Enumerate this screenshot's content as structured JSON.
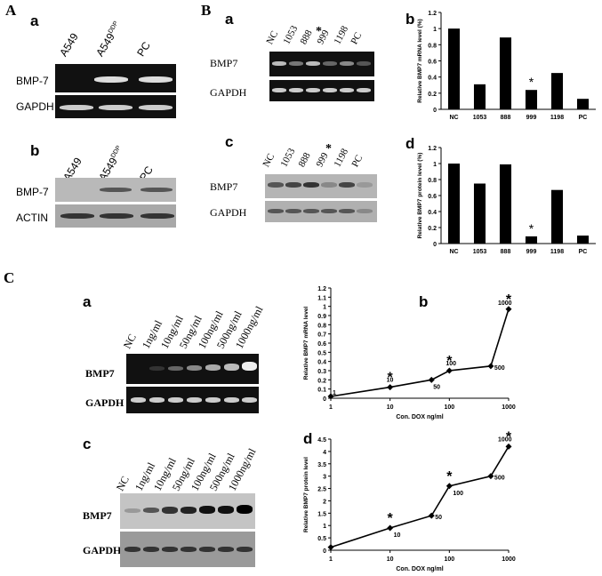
{
  "panels": {
    "A": "A",
    "B": "B",
    "C": "C"
  },
  "sublabels": {
    "a": "a",
    "b": "b",
    "c": "c",
    "d": "d"
  },
  "panelA": {
    "a": {
      "lanes": [
        "A549",
        "A549",
        "PC"
      ],
      "sup": "DDP",
      "rows": [
        "BMP-7",
        "GAPDH"
      ]
    },
    "b": {
      "lanes": [
        "A549",
        "A549",
        "PC"
      ],
      "sup": "DDP",
      "rows": [
        "BMP-7",
        "ACTIN"
      ]
    }
  },
  "panelB": {
    "a": {
      "lanes": [
        "NC",
        "1053",
        "888",
        "999",
        "1198",
        "PC"
      ],
      "star": "*",
      "rows": [
        "BMP7",
        "GAPDH"
      ]
    },
    "c": {
      "lanes": [
        "NC",
        "1053",
        "888",
        "999",
        "1198",
        "PC"
      ],
      "star": "*",
      "rows": [
        "BMP7",
        "GAPDH"
      ]
    }
  },
  "panelC": {
    "a": {
      "lanes": [
        "NC",
        "1ng/ml",
        "10ng/ml",
        "50ng/ml",
        "100ng/ml",
        "500ng/ml",
        "1000ng/ml"
      ],
      "rows": [
        "BMP7",
        "GAPDH"
      ]
    },
    "c": {
      "lanes": [
        "NC",
        "1ng/ml",
        "10ng/ml",
        "50ng/ml",
        "100ng/ml",
        "500ng/ml",
        "1000ng/ml"
      ],
      "rows": [
        "BMP7",
        "GAPDH"
      ]
    }
  },
  "colors": {
    "gel_bg": "#111111",
    "wb_bg": "#b9b9b9",
    "bar": "#000000"
  },
  "chart_data": [
    {
      "id": "B-b",
      "type": "bar",
      "categories": [
        "NC",
        "1053",
        "888",
        "999",
        "1198",
        "PC"
      ],
      "values": [
        1.0,
        0.31,
        0.89,
        0.24,
        0.45,
        0.13
      ],
      "ylabel": "Relative BMP7  mRNA level (%)",
      "ylim": [
        0,
        1.2
      ],
      "yticks": [
        "0",
        "0.2",
        "0.4",
        "0.6",
        "0.8",
        "1",
        "1.2"
      ],
      "star_index": 3,
      "star": "*"
    },
    {
      "id": "B-d",
      "type": "bar",
      "categories": [
        "NC",
        "1053",
        "888",
        "999",
        "1198",
        "PC"
      ],
      "values": [
        1.0,
        0.75,
        0.99,
        0.09,
        0.67,
        0.1
      ],
      "ylabel": "Relative BMP7  protein level (%)",
      "ylim": [
        0,
        1.2
      ],
      "yticks": [
        "0",
        "0.2",
        "0.4",
        "0.6",
        "0.8",
        "1",
        "1.2"
      ],
      "star_index": 3,
      "star": "*"
    },
    {
      "id": "C-b",
      "type": "line",
      "xscale": "log",
      "xlim": [
        1,
        1000
      ],
      "xticks": [
        "1",
        "10",
        "100",
        "1000"
      ],
      "ylim": [
        0,
        1.2
      ],
      "yticks": [
        "0",
        "0.1",
        "0.2",
        "0.3",
        "0.4",
        "0.5",
        "0.6",
        "0.7",
        "0.8",
        "0.9",
        "1",
        "1.1",
        "1.2"
      ],
      "xlabel": "Con. DOX ng/ml",
      "ylabel": "Relative BMP7  mRNA level",
      "points": [
        {
          "x": 1,
          "y": 0.02,
          "label": "1"
        },
        {
          "x": 10,
          "y": 0.12,
          "label": "10",
          "star": true
        },
        {
          "x": 50,
          "y": 0.2,
          "label": "50"
        },
        {
          "x": 100,
          "y": 0.3,
          "label": "100",
          "star": true
        },
        {
          "x": 500,
          "y": 0.35,
          "label": "500"
        },
        {
          "x": 1000,
          "y": 0.97,
          "label": "1000",
          "star": true
        }
      ],
      "star": "*"
    },
    {
      "id": "C-d",
      "type": "line",
      "xscale": "log",
      "xlim": [
        1,
        1000
      ],
      "xticks": [
        "1",
        "10",
        "100",
        "1000"
      ],
      "ylim": [
        0,
        4.5
      ],
      "yticks": [
        "0",
        "0.5",
        "1",
        "1.5",
        "2",
        "2.5",
        "3",
        "3.5",
        "4",
        "4.5"
      ],
      "xlabel": "Con. DOX ng/ml",
      "ylabel": "Relative BMP7  protein level",
      "points": [
        {
          "x": 1,
          "y": 0.12,
          "label": ""
        },
        {
          "x": 10,
          "y": 0.9,
          "label": "10",
          "star": true
        },
        {
          "x": 50,
          "y": 1.4,
          "label": "50"
        },
        {
          "x": 100,
          "y": 2.6,
          "label": "100",
          "star": true
        },
        {
          "x": 500,
          "y": 3.0,
          "label": "500"
        },
        {
          "x": 1000,
          "y": 4.2,
          "label": "1000",
          "star": true
        }
      ],
      "star": "*"
    }
  ]
}
